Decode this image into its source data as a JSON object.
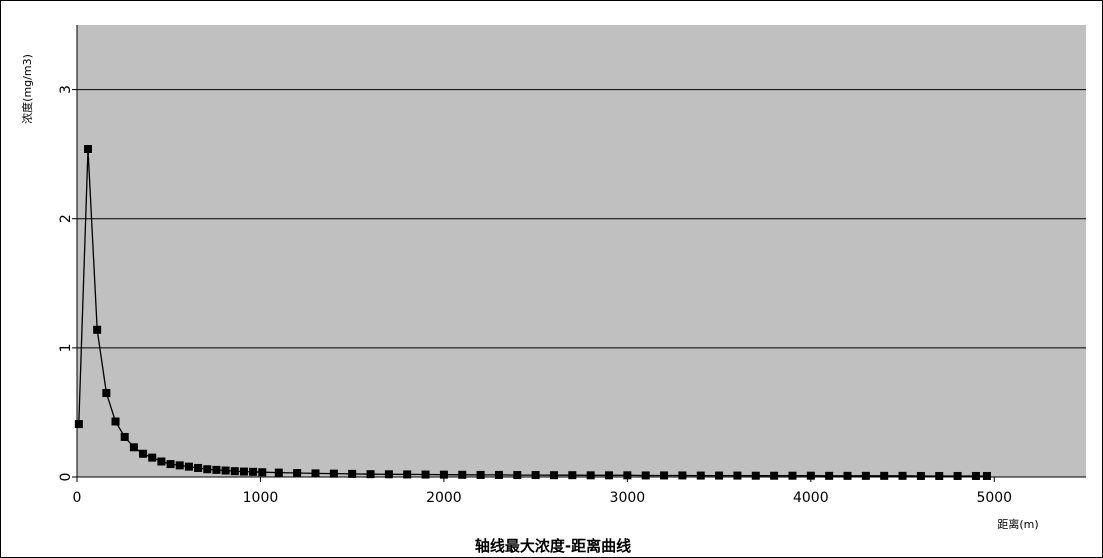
{
  "chart_data": {
    "type": "line",
    "title": "轴线最大浓度-距离曲线",
    "xlabel": "距离(m)",
    "ylabel": "浓度(mg/m3)",
    "xlim": [
      0,
      5500
    ],
    "ylim": [
      0,
      3.5
    ],
    "xticks": [
      0,
      1000,
      2000,
      3000,
      4000,
      5000
    ],
    "yticks": [
      0,
      1,
      2,
      3
    ],
    "grid": "horizontal",
    "legend": "none",
    "colors": {
      "plot_bg": "#c0c0c0",
      "line": "#000000",
      "grid": "#000000"
    },
    "series": [
      {
        "marker": "square",
        "x": [
          10,
          60,
          110,
          160,
          210,
          260,
          310,
          360,
          410,
          460,
          510,
          560,
          610,
          660,
          710,
          760,
          810,
          860,
          910,
          960,
          1010,
          1100,
          1200,
          1300,
          1400,
          1500,
          1600,
          1700,
          1800,
          1900,
          2000,
          2100,
          2200,
          2300,
          2400,
          2500,
          2600,
          2700,
          2800,
          2900,
          3000,
          3100,
          3200,
          3300,
          3400,
          3500,
          3600,
          3700,
          3800,
          3900,
          4000,
          4100,
          4200,
          4300,
          4400,
          4500,
          4600,
          4700,
          4800,
          4900,
          4960
        ],
        "y": [
          0.41,
          2.54,
          1.14,
          0.65,
          0.43,
          0.31,
          0.23,
          0.18,
          0.15,
          0.12,
          0.1,
          0.09,
          0.08,
          0.07,
          0.06,
          0.055,
          0.05,
          0.045,
          0.042,
          0.04,
          0.037,
          0.034,
          0.031,
          0.028,
          0.026,
          0.024,
          0.022,
          0.021,
          0.02,
          0.019,
          0.018,
          0.017,
          0.016,
          0.016,
          0.015,
          0.015,
          0.014,
          0.014,
          0.013,
          0.013,
          0.013,
          0.012,
          0.012,
          0.012,
          0.011,
          0.011,
          0.011,
          0.01,
          0.01,
          0.01,
          0.01,
          0.009,
          0.009,
          0.009,
          0.009,
          0.009,
          0.008,
          0.008,
          0.008,
          0.008,
          0.008
        ]
      }
    ]
  }
}
